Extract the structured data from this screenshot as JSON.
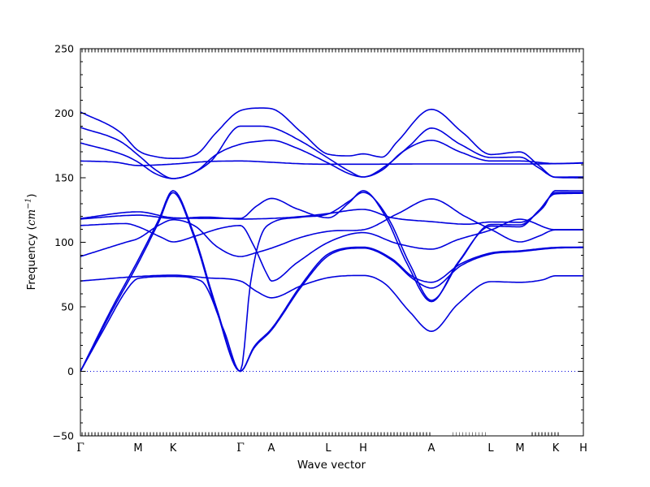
{
  "figure": {
    "background": "#ffffff",
    "line_color": "#0000dd",
    "axis_color": "#000000"
  },
  "axes": {
    "xlabel": "Wave vector",
    "ylabel_prefix": "Frequency (",
    "ylabel_unit": "cm",
    "ylabel_exp": "−1",
    "ylabel_suffix": ")"
  },
  "chart_data": {
    "type": "line",
    "title": "",
    "xlabel": "Wave vector",
    "ylabel": "Frequency (cm^-1)",
    "ylim": [
      -50,
      250
    ],
    "grid": false,
    "legend": "none",
    "yticks": [
      250,
      200,
      150,
      100,
      50,
      0,
      -50
    ],
    "ytick_labels": [
      "250",
      "200",
      "150",
      "100",
      "50",
      "0",
      "−50"
    ],
    "zero_reference_line": 0,
    "x_axis_note": "x in fraction of total k-path length",
    "high_symmetry_points": [
      {
        "label": "Γ",
        "x": 0.0,
        "serif": true
      },
      {
        "label": "M",
        "x": 0.1147,
        "serif": false
      },
      {
        "label": "K",
        "x": 0.1842,
        "serif": false
      },
      {
        "label": "Γ",
        "x": 0.3183,
        "serif": true
      },
      {
        "label": "A",
        "x": 0.3796,
        "serif": false
      },
      {
        "label": "L",
        "x": 0.4927,
        "serif": false
      },
      {
        "label": "H",
        "x": 0.5622,
        "serif": false
      },
      {
        "label": "A",
        "x": 0.6979,
        "serif": false
      },
      {
        "label": "L",
        "x": 0.8158,
        "serif": false
      },
      {
        "label": "M",
        "x": 0.874,
        "serif": false
      },
      {
        "label": "K",
        "x": 0.9451,
        "serif": false
      },
      {
        "label": "H",
        "x": 1.0,
        "serif": false
      }
    ],
    "branches": [
      {
        "name": "band-1",
        "points": [
          [
            0,
            0
          ],
          [
            0.06,
            45
          ],
          [
            0.115,
            84
          ],
          [
            0.155,
            115
          ],
          [
            0.184,
            138.5
          ],
          [
            0.225,
            105
          ],
          [
            0.27,
            48
          ],
          [
            0.318,
            0
          ],
          [
            0.345,
            18
          ],
          [
            0.38,
            32
          ],
          [
            0.44,
            66
          ],
          [
            0.493,
            89.6
          ],
          [
            0.562,
            95.5
          ],
          [
            0.62,
            86
          ],
          [
            0.66,
            72
          ],
          [
            0.698,
            64.5
          ],
          [
            0.757,
            82
          ],
          [
            0.816,
            90.9
          ],
          [
            0.874,
            92.8
          ],
          [
            0.944,
            95.5
          ],
          [
            1,
            95.9
          ]
        ]
      },
      {
        "name": "band-2",
        "points": [
          [
            0,
            0
          ],
          [
            0.06,
            47
          ],
          [
            0.115,
            86.5
          ],
          [
            0.155,
            117
          ],
          [
            0.184,
            140
          ],
          [
            0.225,
            107
          ],
          [
            0.27,
            50
          ],
          [
            0.318,
            0
          ],
          [
            0.345,
            19
          ],
          [
            0.38,
            33
          ],
          [
            0.44,
            67.5
          ],
          [
            0.493,
            91
          ],
          [
            0.562,
            96.2
          ],
          [
            0.62,
            87
          ],
          [
            0.66,
            73.5
          ],
          [
            0.698,
            69
          ],
          [
            0.757,
            83.5
          ],
          [
            0.816,
            91.7
          ],
          [
            0.874,
            93.4
          ],
          [
            0.944,
            96
          ],
          [
            1,
            96.3
          ]
        ]
      },
      {
        "name": "band-3",
        "points": [
          [
            0,
            0
          ],
          [
            0.05,
            35
          ],
          [
            0.09,
            62
          ],
          [
            0.115,
            72
          ],
          [
            0.184,
            73.5
          ],
          [
            0.24,
            70
          ],
          [
            0.285,
            32
          ],
          [
            0.318,
            0
          ],
          [
            0.338,
            68
          ],
          [
            0.358,
            104
          ],
          [
            0.38,
            115
          ],
          [
            0.44,
            119.5
          ],
          [
            0.493,
            122
          ],
          [
            0.535,
            132
          ],
          [
            0.562,
            138.7
          ],
          [
            0.61,
            120
          ],
          [
            0.655,
            83
          ],
          [
            0.698,
            55
          ],
          [
            0.755,
            86
          ],
          [
            0.816,
            113.8
          ],
          [
            0.874,
            113.5
          ],
          [
            0.915,
            126
          ],
          [
            0.944,
            138.5
          ],
          [
            1,
            138.7
          ]
        ]
      },
      {
        "name": "band-4",
        "points": [
          [
            0,
            70
          ],
          [
            0.115,
            73.5
          ],
          [
            0.184,
            74.5
          ],
          [
            0.25,
            72.5
          ],
          [
            0.318,
            70
          ],
          [
            0.35,
            62
          ],
          [
            0.38,
            57
          ],
          [
            0.44,
            66.5
          ],
          [
            0.493,
            72.6
          ],
          [
            0.562,
            74.3
          ],
          [
            0.605,
            68
          ],
          [
            0.655,
            46
          ],
          [
            0.698,
            31
          ],
          [
            0.75,
            52
          ],
          [
            0.816,
            69.5
          ],
          [
            0.874,
            69
          ],
          [
            0.92,
            71
          ],
          [
            0.944,
            74
          ],
          [
            1,
            74
          ]
        ]
      },
      {
        "name": "band-5",
        "points": [
          [
            0,
            89
          ],
          [
            0.09,
            100
          ],
          [
            0.115,
            103
          ],
          [
            0.155,
            113
          ],
          [
            0.184,
            117.5
          ],
          [
            0.23,
            112
          ],
          [
            0.27,
            97
          ],
          [
            0.318,
            89
          ],
          [
            0.35,
            92
          ],
          [
            0.38,
            95.5
          ],
          [
            0.44,
            104
          ],
          [
            0.493,
            108.5
          ],
          [
            0.562,
            109.7
          ],
          [
            0.63,
            122
          ],
          [
            0.698,
            133.6
          ],
          [
            0.765,
            120
          ],
          [
            0.816,
            110
          ],
          [
            0.874,
            100.3
          ],
          [
            0.91,
            104.5
          ],
          [
            0.944,
            109.6
          ],
          [
            1,
            109.6
          ]
        ]
      },
      {
        "name": "band-6",
        "points": [
          [
            0,
            113
          ],
          [
            0.09,
            114.5
          ],
          [
            0.115,
            112
          ],
          [
            0.16,
            104
          ],
          [
            0.184,
            100.3
          ],
          [
            0.23,
            105
          ],
          [
            0.28,
            111
          ],
          [
            0.318,
            113
          ],
          [
            0.345,
            97
          ],
          [
            0.37,
            76
          ],
          [
            0.38,
            70
          ],
          [
            0.43,
            84
          ],
          [
            0.493,
            100
          ],
          [
            0.562,
            107.5
          ],
          [
            0.63,
            99
          ],
          [
            0.698,
            94.7
          ],
          [
            0.75,
            102
          ],
          [
            0.816,
            109.5
          ],
          [
            0.874,
            117.9
          ],
          [
            0.944,
            109.8
          ],
          [
            1,
            109.9
          ]
        ]
      },
      {
        "name": "band-7",
        "points": [
          [
            0,
            118
          ],
          [
            0.115,
            121
          ],
          [
            0.184,
            118.5
          ],
          [
            0.25,
            119.5
          ],
          [
            0.318,
            118
          ],
          [
            0.38,
            118.5
          ],
          [
            0.44,
            120
          ],
          [
            0.493,
            122.3
          ],
          [
            0.562,
            125.5
          ],
          [
            0.62,
            119
          ],
          [
            0.698,
            116
          ],
          [
            0.77,
            114
          ],
          [
            0.816,
            115.7
          ],
          [
            0.874,
            115.5
          ],
          [
            0.92,
            127
          ],
          [
            0.944,
            140
          ],
          [
            1,
            139.9
          ]
        ]
      },
      {
        "name": "band-8",
        "points": [
          [
            0,
            118.5
          ],
          [
            0.115,
            123.6
          ],
          [
            0.184,
            119
          ],
          [
            0.26,
            118.5
          ],
          [
            0.318,
            118.5
          ],
          [
            0.35,
            128
          ],
          [
            0.38,
            134
          ],
          [
            0.43,
            126
          ],
          [
            0.493,
            119
          ],
          [
            0.535,
            131
          ],
          [
            0.562,
            140
          ],
          [
            0.605,
            121
          ],
          [
            0.65,
            83
          ],
          [
            0.698,
            54
          ],
          [
            0.75,
            84
          ],
          [
            0.816,
            112.5
          ],
          [
            0.874,
            112
          ],
          [
            0.91,
            124
          ],
          [
            0.944,
            137.5
          ],
          [
            1,
            138
          ]
        ]
      },
      {
        "name": "band-9",
        "points": [
          [
            0,
            163
          ],
          [
            0.07,
            162
          ],
          [
            0.115,
            159.5
          ],
          [
            0.184,
            160.6
          ],
          [
            0.25,
            162.5
          ],
          [
            0.318,
            163
          ],
          [
            0.38,
            162
          ],
          [
            0.44,
            160.8
          ],
          [
            0.493,
            160.5
          ],
          [
            0.562,
            160.5
          ],
          [
            0.698,
            160.7
          ],
          [
            0.816,
            160.7
          ],
          [
            0.874,
            160.7
          ],
          [
            0.944,
            160.9
          ],
          [
            1,
            161.3
          ]
        ]
      },
      {
        "name": "band-10",
        "points": [
          [
            0,
            177
          ],
          [
            0.09,
            167
          ],
          [
            0.115,
            162
          ],
          [
            0.15,
            153
          ],
          [
            0.184,
            149.4
          ],
          [
            0.23,
            155
          ],
          [
            0.27,
            168
          ],
          [
            0.318,
            176
          ],
          [
            0.36,
            178.5
          ],
          [
            0.38,
            179
          ],
          [
            0.43,
            173
          ],
          [
            0.493,
            161.3
          ],
          [
            0.535,
            153
          ],
          [
            0.562,
            150.6
          ],
          [
            0.6,
            156
          ],
          [
            0.64,
            170
          ],
          [
            0.698,
            179
          ],
          [
            0.755,
            170
          ],
          [
            0.816,
            163
          ],
          [
            0.874,
            163
          ],
          [
            0.944,
            161
          ],
          [
            1,
            161.6
          ]
        ]
      },
      {
        "name": "band-11",
        "points": [
          [
            0,
            189
          ],
          [
            0.08,
            178
          ],
          [
            0.115,
            167.5
          ],
          [
            0.15,
            156
          ],
          [
            0.184,
            149.4
          ],
          [
            0.22,
            153
          ],
          [
            0.26,
            163
          ],
          [
            0.318,
            190
          ],
          [
            0.35,
            190
          ],
          [
            0.38,
            189
          ],
          [
            0.44,
            178
          ],
          [
            0.493,
            165.1
          ],
          [
            0.535,
            155
          ],
          [
            0.562,
            150.6
          ],
          [
            0.61,
            160
          ],
          [
            0.655,
            175
          ],
          [
            0.698,
            188.5
          ],
          [
            0.755,
            176
          ],
          [
            0.816,
            165.7
          ],
          [
            0.874,
            166
          ],
          [
            0.91,
            158
          ],
          [
            0.944,
            150.5
          ],
          [
            1,
            150.6
          ]
        ]
      },
      {
        "name": "band-12",
        "points": [
          [
            0,
            201
          ],
          [
            0.08,
            185
          ],
          [
            0.115,
            171
          ],
          [
            0.155,
            166
          ],
          [
            0.184,
            165
          ],
          [
            0.23,
            168
          ],
          [
            0.27,
            185
          ],
          [
            0.318,
            202
          ],
          [
            0.36,
            204
          ],
          [
            0.38,
            203.5
          ],
          [
            0.44,
            185
          ],
          [
            0.493,
            168.2
          ],
          [
            0.535,
            167
          ],
          [
            0.562,
            168.5
          ],
          [
            0.6,
            166
          ],
          [
            0.63,
            178
          ],
          [
            0.698,
            203
          ],
          [
            0.76,
            185
          ],
          [
            0.816,
            168
          ],
          [
            0.874,
            170
          ],
          [
            0.91,
            160
          ],
          [
            0.944,
            150.3
          ],
          [
            1,
            149.9
          ]
        ]
      }
    ]
  }
}
